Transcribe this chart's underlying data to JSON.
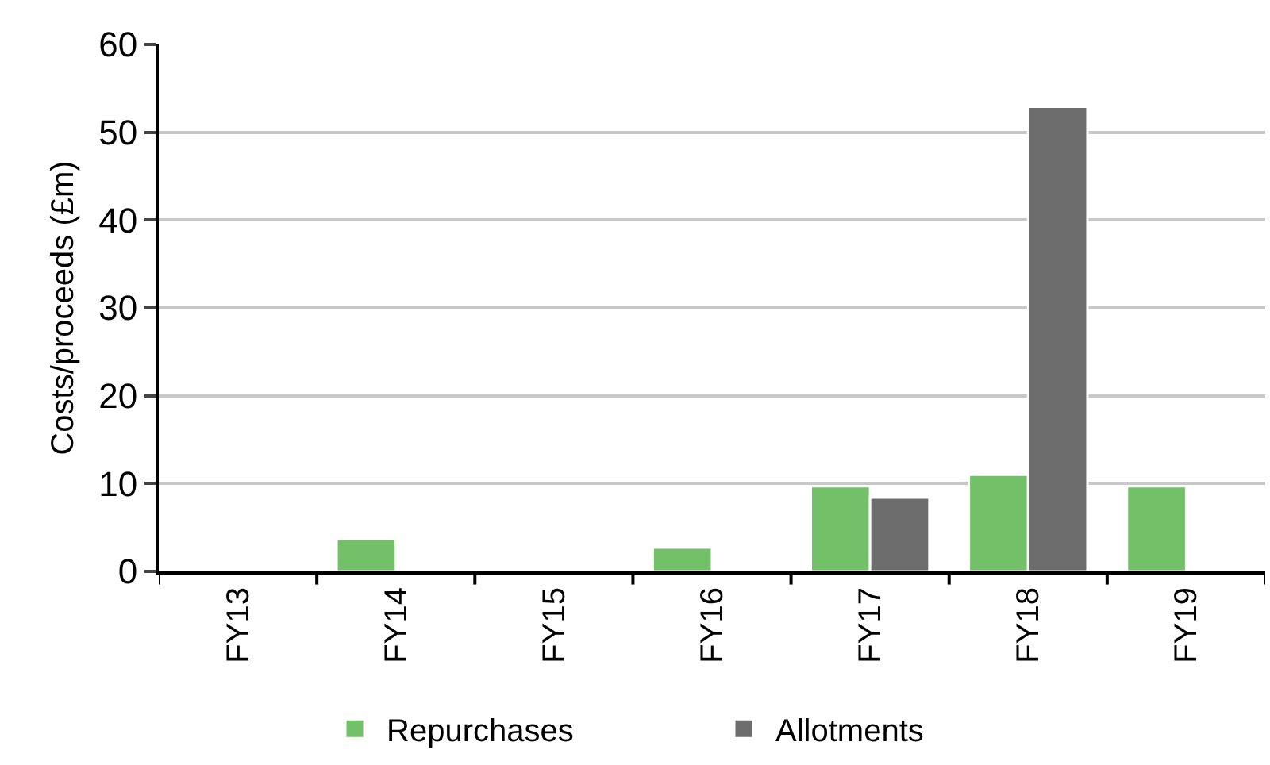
{
  "chart_data": {
    "type": "bar",
    "ylabel": "Costs/proceeds (£m)",
    "categories": [
      "FY13",
      "FY14",
      "FY15",
      "FY16",
      "FY17",
      "FY18",
      "FY19"
    ],
    "series": [
      {
        "name": "Repurchases",
        "color": "#72c068",
        "values": [
          null,
          3.7,
          null,
          2.7,
          9.7,
          11.0,
          9.7
        ]
      },
      {
        "name": "Allotments",
        "color": "#6d6d6d",
        "values": [
          null,
          null,
          null,
          null,
          8.4,
          52.9,
          null
        ]
      }
    ],
    "ylim": [
      0,
      60
    ],
    "yticks": [
      0,
      10,
      20,
      30,
      40,
      50,
      60
    ],
    "grid": "y",
    "legend": "bottom"
  }
}
